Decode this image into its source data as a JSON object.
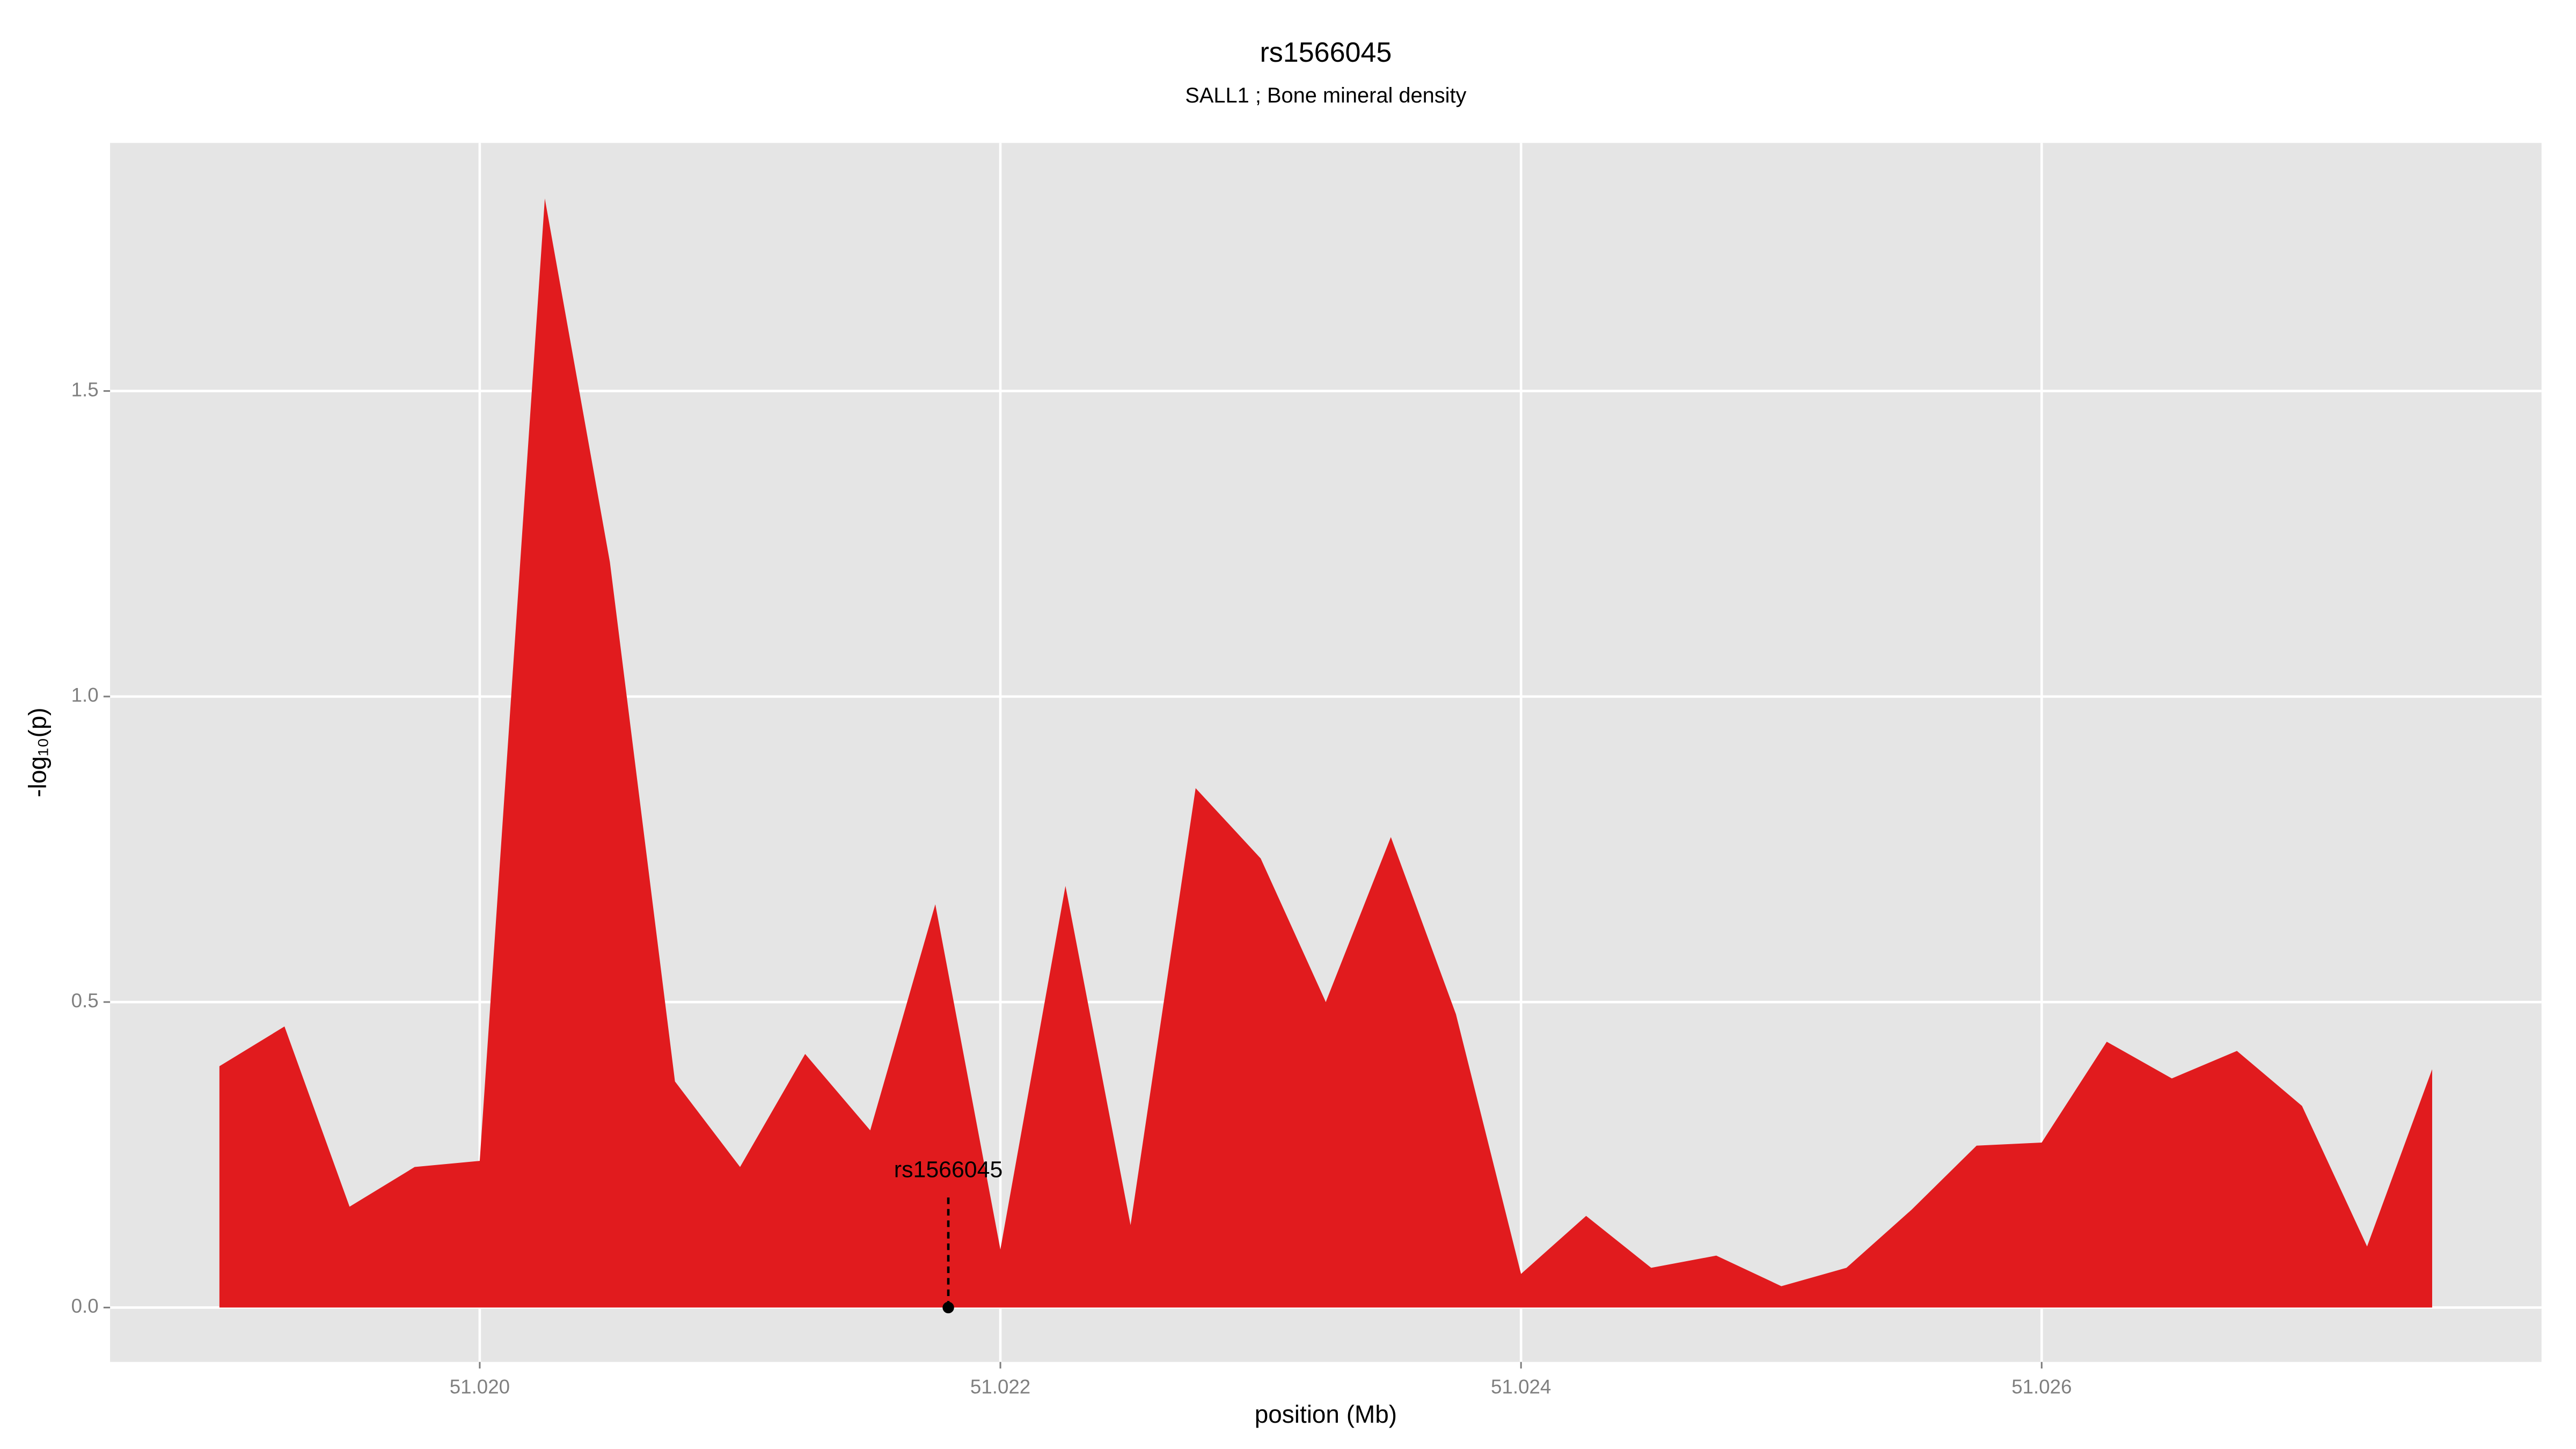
{
  "chart_data": {
    "type": "area",
    "title": "rs1566045",
    "subtitle": "SALL1 ; Bone mineral density",
    "x_label": "position (Mb)",
    "y_label": "-log₁₀(p)",
    "x": [
      51.019,
      51.01925,
      51.0195,
      51.01975,
      51.02,
      51.02025,
      51.0205,
      51.02075,
      51.021,
      51.02125,
      51.0215,
      51.02175,
      51.022,
      51.02225,
      51.0225,
      51.02275,
      51.023,
      51.02325,
      51.0235,
      51.02375,
      51.024,
      51.02425,
      51.0245,
      51.02475,
      51.025,
      51.02525,
      51.0255,
      51.02575,
      51.026,
      51.02625,
      51.0265,
      51.02675,
      51.027,
      51.02725,
      51.0275
    ],
    "values": [
      0.395,
      0.46,
      0.165,
      0.23,
      0.24,
      1.815,
      1.22,
      0.37,
      0.23,
      0.415,
      0.29,
      0.66,
      0.095,
      0.69,
      0.135,
      0.85,
      0.735,
      0.5,
      0.77,
      0.48,
      0.055,
      0.15,
      0.065,
      0.085,
      0.035,
      0.065,
      0.16,
      0.265,
      0.27,
      0.435,
      0.375,
      0.42,
      0.33,
      0.1,
      0.39
    ],
    "color": "#e11b1e",
    "xlim": [
      51.01858,
      51.02792
    ],
    "ylim": [
      -0.089,
      1.906
    ],
    "xticks": [
      {
        "value": 51.02,
        "label": "51.020"
      },
      {
        "value": 51.022,
        "label": "51.022"
      },
      {
        "value": 51.024,
        "label": "51.024"
      },
      {
        "value": 51.026,
        "label": "51.026"
      }
    ],
    "yticks": [
      {
        "value": 0,
        "label": "0.0"
      },
      {
        "value": 0.5,
        "label": "0.5"
      },
      {
        "value": 1,
        "label": "1.0"
      },
      {
        "value": 1.5,
        "label": "1.5"
      }
    ],
    "grid": true,
    "annotation": {
      "label": "rs1566045",
      "x": 51.0218,
      "y": 0
    }
  }
}
